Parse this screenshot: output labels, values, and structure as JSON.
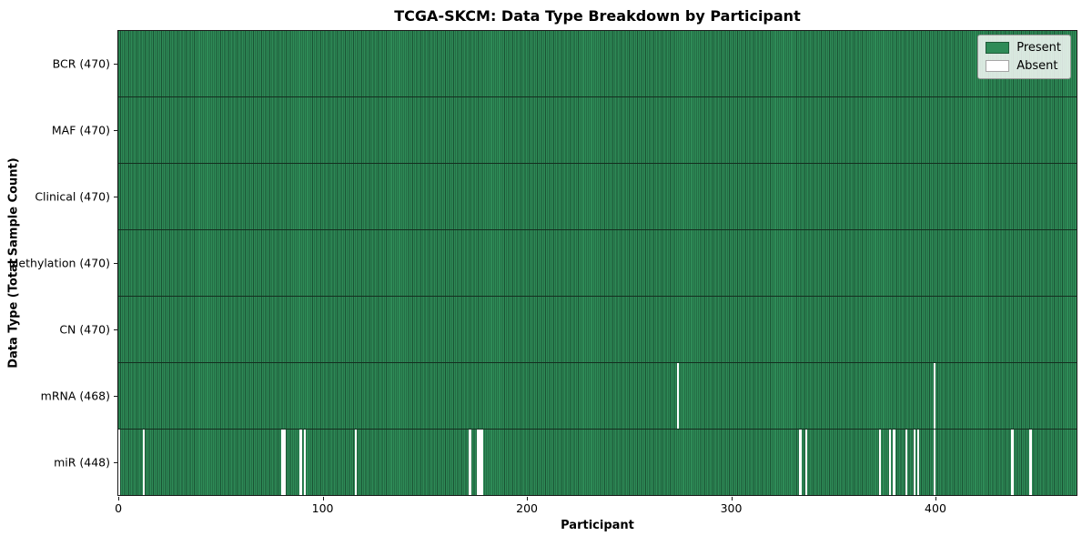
{
  "chart_data": {
    "type": "heatmap",
    "title": "TCGA-SKCM: Data Type Breakdown by Participant",
    "xlabel": "Participant",
    "ylabel": "Data Type (Total Sample Count)",
    "n_participants": 470,
    "xlim": [
      -0.5,
      469.5
    ],
    "x_ticks": [
      0,
      100,
      200,
      300,
      400
    ],
    "grid": false,
    "legend": {
      "position": "upper right",
      "entries": [
        {
          "label": "Present",
          "color": "#2e8b57"
        },
        {
          "label": "Absent",
          "color": "#ffffff"
        }
      ]
    },
    "rows": [
      {
        "label": "BCR (470)",
        "data_type": "BCR",
        "present_count": 470,
        "absent_participants": []
      },
      {
        "label": "MAF (470)",
        "data_type": "MAF",
        "present_count": 470,
        "absent_participants": []
      },
      {
        "label": "Clinical (470)",
        "data_type": "Clinical",
        "present_count": 470,
        "absent_participants": []
      },
      {
        "label": "Methylation (470)",
        "data_type": "Methylation",
        "present_count": 470,
        "absent_participants": []
      },
      {
        "label": "CN (470)",
        "data_type": "CN",
        "present_count": 470,
        "absent_participants": []
      },
      {
        "label": "mRNA (468)",
        "data_type": "mRNA",
        "present_count": 468,
        "absent_participants": [
          274,
          400
        ]
      },
      {
        "label": "miR (448)",
        "data_type": "miR",
        "present_count": 448,
        "absent_participants": [
          0,
          12,
          80,
          81,
          89,
          91,
          116,
          172,
          176,
          177,
          178,
          334,
          337,
          373,
          378,
          380,
          386,
          390,
          392,
          400,
          438,
          447
        ]
      }
    ],
    "colors": {
      "present": "#2e8b57",
      "absent": "#ffffff",
      "bar_edge": "#16301f",
      "spine": "#1a1a1a",
      "background": "#ffffff"
    }
  }
}
